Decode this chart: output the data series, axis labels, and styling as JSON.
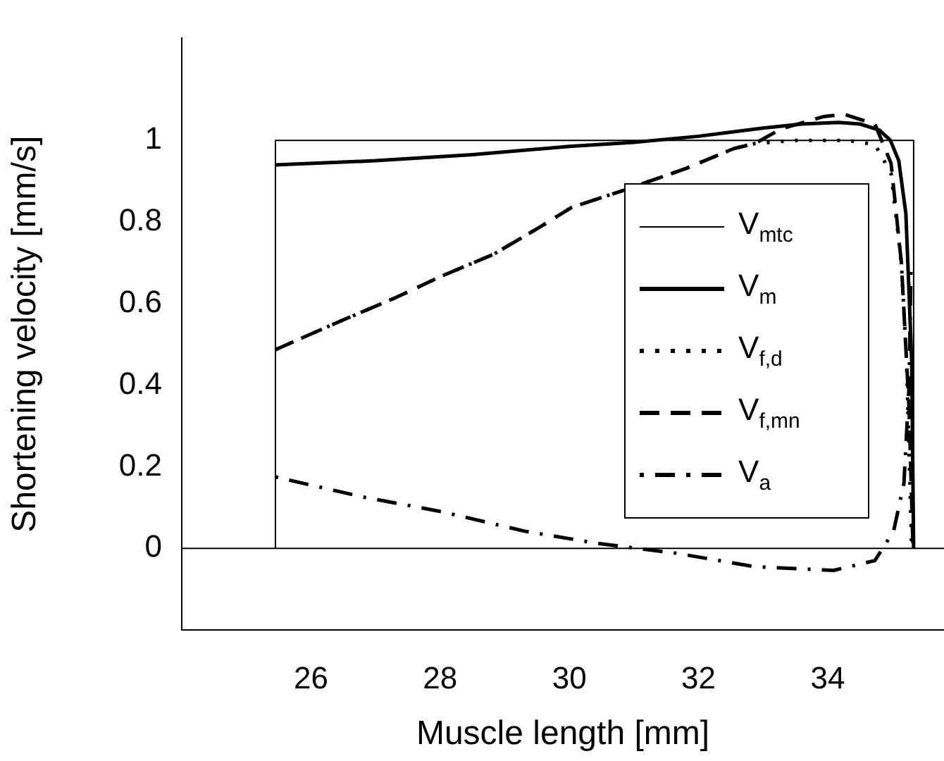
{
  "chart_data": {
    "type": "line",
    "xlabel": "Muscle length [mm]",
    "ylabel": "Shortening velocity [mm/s]",
    "xlim": [
      24,
      35.8
    ],
    "xticks": [
      26,
      28,
      30,
      32,
      34
    ],
    "ylim": [
      -0.2,
      1.25
    ],
    "yticks": [
      0,
      0.2,
      0.4,
      0.6,
      0.8,
      1
    ],
    "grid": false,
    "legend": "right",
    "marker": "none",
    "ref_lines": [
      {
        "axis": "y",
        "value": 0,
        "color": "#000000",
        "line_style": "solid"
      }
    ],
    "series": [
      {
        "name": "V$_{mtc}$",
        "color": "#000000",
        "line_style": "solid",
        "x": [
          25.45,
          25.45,
          35.33,
          35.33
        ],
        "values": [
          0,
          1,
          1,
          0
        ]
      },
      {
        "name": "V$_{m}$",
        "color": "#000000",
        "line_style": "solid",
        "x": [
          25.45,
          27,
          28.5,
          30,
          31,
          32,
          33,
          33.6,
          34.17,
          34.5,
          34.8,
          34.97,
          35.1,
          35.21,
          35.3,
          35.33
        ],
        "values": [
          0.94,
          0.95,
          0.965,
          0.985,
          0.995,
          1.01,
          1.03,
          1.04,
          1.044,
          1.04,
          1.025,
          1.0,
          0.95,
          0.82,
          0.46,
          0
        ]
      },
      {
        "name": "V$_{f,d}$",
        "color": "#000000",
        "line_style": "dotted",
        "x": [
          25.45,
          26.4,
          27.29,
          28.02,
          28.83,
          29.55,
          30.04,
          30.85,
          31.82,
          32.55,
          32.87,
          33.5,
          34.3,
          34.73,
          34.98,
          35.14,
          35.22,
          35.26,
          35.3
        ],
        "values": [
          0.487,
          0.553,
          0.613,
          0.667,
          0.721,
          0.788,
          0.836,
          0.878,
          0.932,
          0.98,
          0.992,
          1.0,
          1.0,
          0.99,
          0.92,
          0.7,
          0.46,
          0.23,
          0
        ]
      },
      {
        "name": "V$_{f,mn}$",
        "color": "#000000",
        "line_style": "dashed",
        "x": [
          25.45,
          26.4,
          27.29,
          28.02,
          28.83,
          29.55,
          30.04,
          30.85,
          31.82,
          32.55,
          32.87,
          33.28,
          33.93,
          34.25,
          34.73,
          34.98,
          35.14,
          35.26,
          35.32
        ],
        "values": [
          0.487,
          0.553,
          0.613,
          0.667,
          0.721,
          0.788,
          0.836,
          0.878,
          0.932,
          0.98,
          0.992,
          1.028,
          1.058,
          1.064,
          1.04,
          0.944,
          0.7,
          0.34,
          0
        ]
      },
      {
        "name": "V$_{a}$",
        "color": "#000000",
        "line_style": "dashdot",
        "x": [
          25.45,
          26.8,
          28.02,
          29.31,
          30.44,
          31.05,
          31.66,
          32.87,
          34.09,
          34.73,
          35.02,
          35.18,
          35.26,
          35.29
        ],
        "values": [
          0.175,
          0.126,
          0.09,
          0.042,
          0.012,
          0,
          -0.012,
          -0.045,
          -0.054,
          -0.03,
          0.042,
          0.16,
          0.4,
          0.7
        ]
      }
    ]
  }
}
